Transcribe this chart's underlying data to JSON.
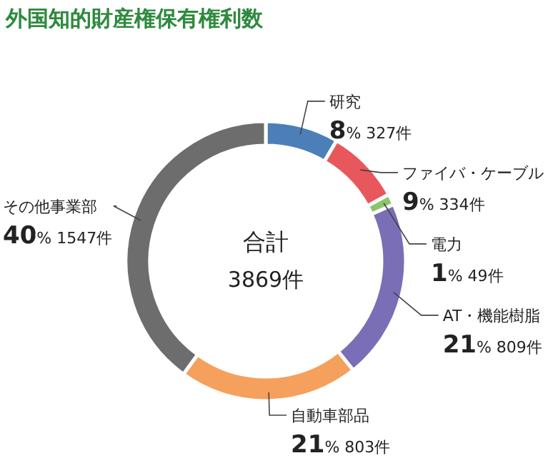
{
  "chart_data": {
    "type": "donut",
    "title": "外国知的財産権保有権利数",
    "categories": [
      "研究",
      "ファイバ・ケーブル",
      "電力",
      "AT・機能樹脂",
      "自動車部品",
      "その他事業部"
    ],
    "values": [
      327,
      334,
      49,
      809,
      803,
      1547
    ],
    "value_labels": [
      "8% 327件",
      "9% 334件",
      "1% 49件",
      "21% 809件",
      "21% 803件",
      "40% 1547件"
    ],
    "colors": [
      "#4c7fb8",
      "#e8575b",
      "#8cc56c",
      "#7a6fb6",
      "#f5a05c",
      "#6d6d6e"
    ],
    "annotations": [
      "合計",
      "3869件"
    ]
  }
}
